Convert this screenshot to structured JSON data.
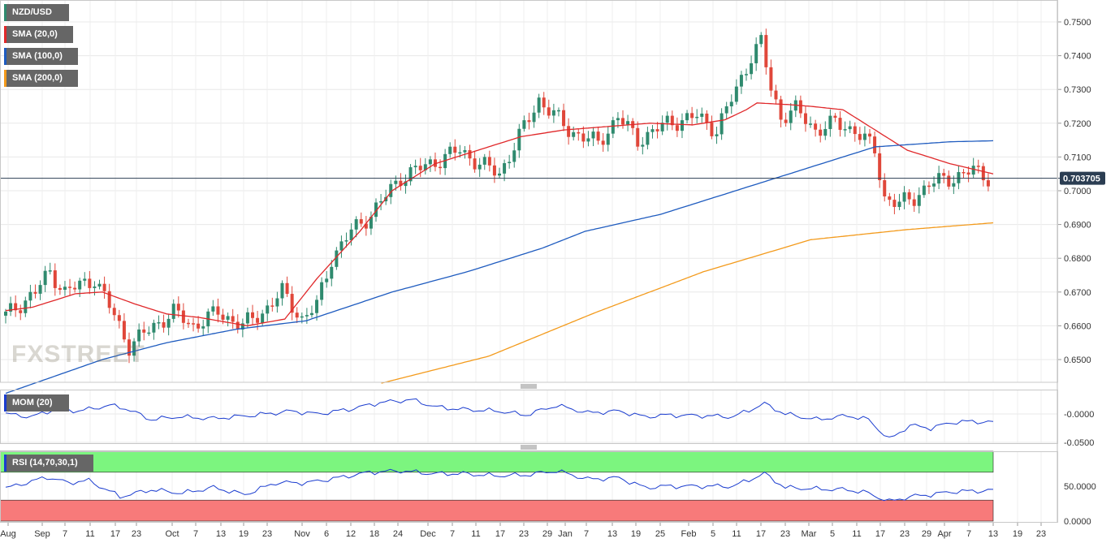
{
  "symbol": "NZD/USD",
  "indicators": {
    "sma20": {
      "label": "SMA (20,0)",
      "color": "#e0282a"
    },
    "sma100": {
      "label": "SMA (100,0)",
      "color": "#1e5bbf"
    },
    "sma200": {
      "label": "SMA (200,0)",
      "color": "#f39a1b"
    },
    "mom": {
      "label": "MOM (20)",
      "color": "#1a3ccf"
    },
    "rsi": {
      "label": "RSI (14,70,30,1)",
      "color": "#1a3ccf"
    }
  },
  "current_price_label": "0.703705",
  "watermark": "FXSTREET",
  "colors": {
    "up": "#2f8a6e",
    "down": "#e0473a",
    "rsi_upper": "#7cf57f",
    "rsi_lower": "#f77a7a",
    "price_tag": "#2b3d52"
  },
  "chart_data": {
    "type": "candlestick",
    "price_axis": {
      "ticks": [
        "0.7500",
        "0.7400",
        "0.7300",
        "0.7200",
        "0.7100",
        "0.7000",
        "0.6900",
        "0.6800",
        "0.6700",
        "0.6600",
        "0.6500"
      ]
    },
    "mom_axis": {
      "ticks": [
        "-0.0000",
        "-0.0500"
      ]
    },
    "rsi_axis": {
      "ticks": [
        "50.0000",
        "0.0000"
      ]
    },
    "x_labels": [
      "Aug",
      "Sep",
      "7",
      "11",
      "17",
      "23",
      "Oct",
      "7",
      "13",
      "19",
      "23",
      "Nov",
      "6",
      "12",
      "18",
      "24",
      "Dec",
      "7",
      "11",
      "17",
      "23",
      "29",
      "Jan",
      "7",
      "13",
      "19",
      "25",
      "Feb",
      "5",
      "11",
      "17",
      "23",
      "Mar",
      "5",
      "11",
      "17",
      "23",
      "29",
      "Apr",
      "7",
      "13",
      "19",
      "23"
    ],
    "current_price": 0.703705,
    "sma20_keypoints": [
      [
        0,
        0.6645
      ],
      [
        5,
        0.6655
      ],
      [
        13,
        0.6695
      ],
      [
        18,
        0.67
      ],
      [
        24,
        0.6665
      ],
      [
        30,
        0.6635
      ],
      [
        36,
        0.6625
      ],
      [
        45,
        0.66
      ],
      [
        52,
        0.662
      ],
      [
        58,
        0.674
      ],
      [
        66,
        0.688
      ],
      [
        72,
        0.7
      ],
      [
        80,
        0.708
      ],
      [
        88,
        0.712
      ],
      [
        96,
        0.716
      ],
      [
        104,
        0.718
      ],
      [
        112,
        0.719
      ],
      [
        120,
        0.72
      ],
      [
        128,
        0.7195
      ],
      [
        134,
        0.721
      ],
      [
        138,
        0.724
      ],
      [
        140,
        0.726
      ],
      [
        146,
        0.7255
      ],
      [
        150,
        0.725
      ],
      [
        156,
        0.724
      ],
      [
        162,
        0.718
      ],
      [
        168,
        0.712
      ],
      [
        176,
        0.708
      ],
      [
        184,
        0.705
      ]
    ],
    "sma100_keypoints": [
      [
        0,
        0.64
      ],
      [
        18,
        0.65
      ],
      [
        30,
        0.655
      ],
      [
        43,
        0.659
      ],
      [
        56,
        0.6615
      ],
      [
        72,
        0.67
      ],
      [
        86,
        0.676
      ],
      [
        100,
        0.683
      ],
      [
        108,
        0.688
      ],
      [
        122,
        0.693
      ],
      [
        138,
        0.701
      ],
      [
        152,
        0.708
      ],
      [
        162,
        0.713
      ],
      [
        176,
        0.7145
      ],
      [
        184,
        0.7148
      ]
    ],
    "sma200_keypoints": [
      [
        70,
        0.643
      ],
      [
        90,
        0.651
      ],
      [
        110,
        0.664
      ],
      [
        130,
        0.676
      ],
      [
        150,
        0.6855
      ],
      [
        168,
        0.6885
      ],
      [
        184,
        0.6905
      ]
    ],
    "mom_keypoints": [
      [
        0,
        0.0
      ],
      [
        5,
        -0.005
      ],
      [
        10,
        0.01
      ],
      [
        14,
        0.005
      ],
      [
        20,
        0.015
      ],
      [
        23,
        0.01
      ],
      [
        28,
        -0.01
      ],
      [
        33,
        -0.005
      ],
      [
        40,
        -0.008
      ],
      [
        48,
        -0.002
      ],
      [
        55,
        0.005
      ],
      [
        60,
        0.0
      ],
      [
        66,
        0.008
      ],
      [
        72,
        0.02
      ],
      [
        78,
        0.025
      ],
      [
        83,
        0.012
      ],
      [
        88,
        0.008
      ],
      [
        95,
        0.005
      ],
      [
        100,
        -0.002
      ],
      [
        106,
        0.015
      ],
      [
        112,
        0.002
      ],
      [
        118,
        0.005
      ],
      [
        123,
        -0.005
      ],
      [
        127,
        -0.002
      ],
      [
        134,
        -0.003
      ],
      [
        140,
        -0.005
      ],
      [
        146,
        0.018
      ],
      [
        150,
        0.0
      ],
      [
        156,
        -0.01
      ],
      [
        162,
        -0.003
      ],
      [
        166,
        -0.01
      ],
      [
        170,
        -0.045
      ],
      [
        174,
        -0.02
      ],
      [
        178,
        -0.025
      ],
      [
        182,
        -0.015
      ],
      [
        186,
        -0.013
      ],
      [
        190,
        -0.015
      ]
    ],
    "rsi_keypoints": [
      [
        0,
        47
      ],
      [
        4,
        55
      ],
      [
        8,
        63
      ],
      [
        12,
        55
      ],
      [
        16,
        58
      ],
      [
        22,
        35
      ],
      [
        28,
        45
      ],
      [
        34,
        40
      ],
      [
        40,
        48
      ],
      [
        46,
        38
      ],
      [
        52,
        55
      ],
      [
        58,
        55
      ],
      [
        64,
        62
      ],
      [
        70,
        70
      ],
      [
        76,
        72
      ],
      [
        82,
        68
      ],
      [
        88,
        68
      ],
      [
        94,
        65
      ],
      [
        100,
        66
      ],
      [
        106,
        72
      ],
      [
        112,
        60
      ],
      [
        118,
        62
      ],
      [
        123,
        48
      ],
      [
        127,
        50
      ],
      [
        134,
        50
      ],
      [
        140,
        50
      ],
      [
        146,
        68
      ],
      [
        150,
        48
      ],
      [
        156,
        46
      ],
      [
        162,
        45
      ],
      [
        166,
        40
      ],
      [
        170,
        28
      ],
      [
        174,
        35
      ],
      [
        178,
        38
      ],
      [
        182,
        42
      ],
      [
        186,
        43
      ],
      [
        190,
        44
      ]
    ]
  }
}
